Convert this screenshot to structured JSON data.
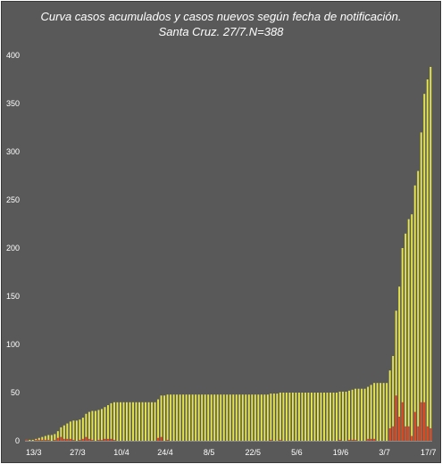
{
  "chart_data": {
    "type": "bar",
    "title_line1": "Curva casos acumulados y casos nuevos según fecha de notificación.",
    "title_line2": "Santa Cruz. 27/7.N=388",
    "xlabel": "",
    "ylabel": "",
    "ylim": [
      0,
      400
    ],
    "yticks": [
      0,
      50,
      100,
      150,
      200,
      250,
      300,
      350,
      400
    ],
    "xtick_labels": [
      "13/3",
      "27/3",
      "10/4",
      "24/4",
      "8/5",
      "22/5",
      "5/6",
      "19/6",
      "3/7",
      "17/7"
    ],
    "grid": false,
    "legend": "none",
    "colors": {
      "background": "#595959",
      "cumulative": "#e6e64a",
      "new": "#e8401c"
    },
    "series": [
      {
        "values": [
          1,
          1,
          1,
          2,
          3,
          4,
          5,
          6,
          6,
          7,
          10,
          14,
          16,
          18,
          20,
          21,
          21,
          22,
          24,
          28,
          30,
          31,
          31,
          32,
          33,
          35,
          37,
          39,
          40,
          40,
          40,
          40,
          40,
          40,
          40,
          40,
          40,
          40,
          40,
          40,
          40,
          40,
          43,
          47,
          47,
          48,
          48,
          48,
          48,
          48,
          48,
          48,
          48,
          48,
          48,
          48,
          48,
          48,
          48,
          48,
          48,
          48,
          48,
          48,
          48,
          48,
          48,
          48,
          48,
          48,
          48,
          48,
          48,
          48,
          48,
          48,
          48,
          48,
          49,
          49,
          49,
          50,
          50,
          50,
          50,
          50,
          50,
          50,
          50,
          50,
          50,
          50,
          50,
          50,
          50,
          50,
          50,
          50,
          50,
          50,
          51,
          51,
          51,
          52,
          53,
          54,
          54,
          54,
          54,
          56,
          58,
          60,
          60,
          60,
          60,
          60,
          73,
          88,
          135,
          160,
          200,
          215,
          230,
          235,
          265,
          280,
          320,
          360,
          375,
          388
        ]
      },
      {
        "values": [
          1,
          0,
          0,
          1,
          1,
          1,
          1,
          1,
          0,
          1,
          3,
          4,
          2,
          2,
          2,
          1,
          0,
          1,
          2,
          4,
          2,
          1,
          0,
          1,
          1,
          2,
          2,
          2,
          1,
          0,
          0,
          0,
          0,
          0,
          0,
          0,
          0,
          0,
          0,
          0,
          0,
          0,
          3,
          4,
          0,
          1,
          0,
          0,
          0,
          0,
          0,
          0,
          0,
          0,
          0,
          0,
          0,
          0,
          0,
          0,
          0,
          0,
          0,
          0,
          0,
          0,
          0,
          0,
          0,
          0,
          0,
          0,
          0,
          0,
          0,
          0,
          0,
          0,
          1,
          0,
          0,
          1,
          0,
          0,
          0,
          0,
          0,
          0,
          0,
          0,
          0,
          0,
          0,
          0,
          0,
          0,
          0,
          0,
          0,
          0,
          1,
          0,
          0,
          1,
          1,
          1,
          0,
          0,
          0,
          2,
          2,
          2,
          0,
          0,
          0,
          0,
          13,
          15,
          47,
          25,
          40,
          15,
          15,
          5,
          30,
          15,
          40,
          40,
          15,
          13
        ]
      }
    ]
  }
}
